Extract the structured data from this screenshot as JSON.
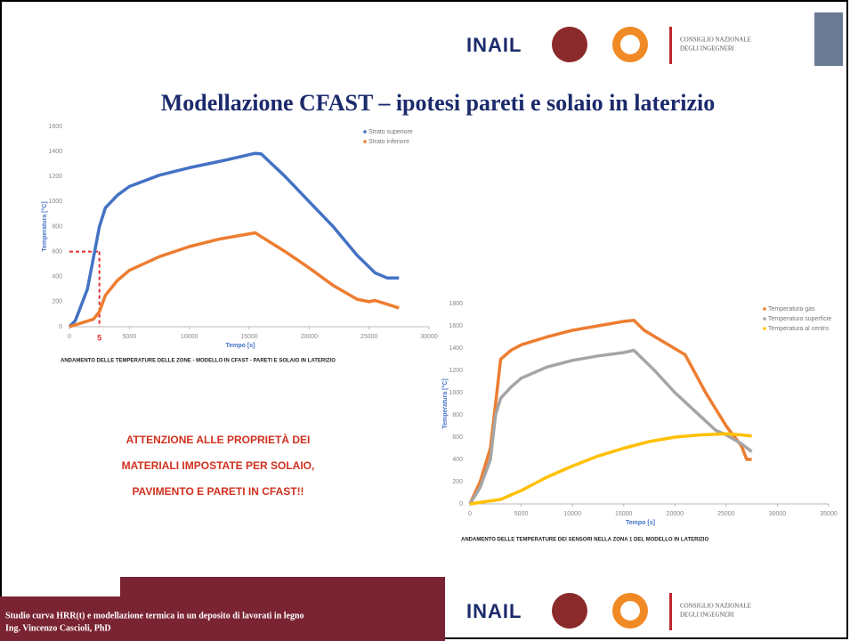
{
  "logo": {
    "brand": "INAIL",
    "council_line1": "CONSIGLIO NAZIONALE",
    "council_line2": "DEGLI INGEGNERI"
  },
  "title": "Modellazione CFAST – ipotesi pareti e solaio in laterizio",
  "notice": [
    "ATTENZIONE ALLE PROPRIETÀ DEI",
    "MATERIALI IMPOSTATE PER SOLAIO,",
    "PAVIMENTO E PARETI IN CFAST!!"
  ],
  "footer": {
    "line1": "Studio curva HRR(t) e modellazione termica in un deposito di lavorati in legno",
    "line2": "Ing. Vincenzo Cascioli, PhD"
  },
  "chart_data": [
    {
      "type": "line",
      "caption": "ANDAMENTO DELLE TEMPERATURE DELLE ZONE - MODELLO IN CFAST - PARETI E SOLAIO IN LATERIZIO",
      "x_label": "Tempo [s]",
      "y_label": "Temperatura [°C]",
      "xlim": [
        0,
        30000
      ],
      "xticks": [
        0,
        5000,
        10000,
        15000,
        20000,
        25000,
        30000
      ],
      "ylim": [
        0,
        1600
      ],
      "yticks": [
        0,
        200,
        400,
        600,
        800,
        1000,
        1200,
        1400,
        1600
      ],
      "grid": false,
      "legend": "top-right",
      "annotation": {
        "text": "5",
        "x": 2500,
        "y": 600,
        "color": "#e03030"
      },
      "series": [
        {
          "name": "Strato superiore",
          "color": "#4472c4",
          "x": [
            0,
            500,
            1500,
            2500,
            3000,
            4000,
            5000,
            7500,
            10000,
            12500,
            15500,
            16000,
            18000,
            20000,
            22000,
            24000,
            25500,
            26500,
            27500
          ],
          "values": [
            0,
            50,
            300,
            800,
            950,
            1050,
            1120,
            1210,
            1270,
            1320,
            1385,
            1380,
            1200,
            1000,
            800,
            570,
            430,
            390,
            390
          ]
        },
        {
          "name": "Strato inferiore",
          "color": "#ed7d31",
          "x": [
            0,
            2000,
            2500,
            3000,
            4000,
            5000,
            7500,
            10000,
            12500,
            15500,
            16000,
            18000,
            20000,
            22000,
            24000,
            25000,
            25500,
            26500,
            27500
          ],
          "values": [
            0,
            60,
            120,
            250,
            370,
            450,
            560,
            640,
            700,
            750,
            720,
            600,
            470,
            330,
            220,
            200,
            210,
            180,
            150
          ]
        }
      ]
    },
    {
      "type": "line",
      "caption": "ANDAMENTO DELLE TEMPERATURE DEI SENSORI NELLA ZONA 1 DEL MODELLO IN LATERIZIO",
      "x_label": "Tempo [s]",
      "y_label": "Temperatura [°C]",
      "xlim": [
        0,
        35000
      ],
      "xticks": [
        0,
        5000,
        10000,
        15000,
        20000,
        25000,
        30000,
        35000
      ],
      "ylim": [
        0,
        1800
      ],
      "yticks": [
        0,
        200,
        400,
        600,
        800,
        1000,
        1200,
        1400,
        1600,
        1800
      ],
      "grid": false,
      "legend": "top-right",
      "series": [
        {
          "name": "Temperatura gas",
          "color": "#ed7d31",
          "x": [
            0,
            1000,
            2000,
            2500,
            3000,
            4000,
            5000,
            7500,
            10000,
            12500,
            15000,
            16000,
            17000,
            19000,
            21000,
            23000,
            25000,
            26500,
            27000,
            27500
          ],
          "values": [
            0,
            200,
            500,
            900,
            1300,
            1380,
            1430,
            1500,
            1560,
            1600,
            1640,
            1650,
            1560,
            1450,
            1340,
            1000,
            700,
            520,
            400,
            400
          ]
        },
        {
          "name": "Temperatura superficie",
          "color": "#a5a5a5",
          "x": [
            0,
            1000,
            2000,
            2500,
            3000,
            4000,
            5000,
            7500,
            10000,
            12500,
            15000,
            16000,
            18000,
            20000,
            22000,
            24000,
            25000,
            26500,
            27500
          ],
          "values": [
            0,
            150,
            400,
            800,
            950,
            1050,
            1130,
            1230,
            1290,
            1330,
            1360,
            1380,
            1200,
            1000,
            830,
            660,
            620,
            540,
            470
          ]
        },
        {
          "name": "Temperatura al centro",
          "color": "#ffc000",
          "x": [
            0,
            3000,
            5000,
            7500,
            10000,
            12500,
            15000,
            17500,
            20000,
            22500,
            25000,
            26500,
            27500
          ],
          "values": [
            0,
            40,
            120,
            240,
            340,
            430,
            500,
            560,
            600,
            620,
            630,
            620,
            610
          ]
        }
      ]
    }
  ]
}
